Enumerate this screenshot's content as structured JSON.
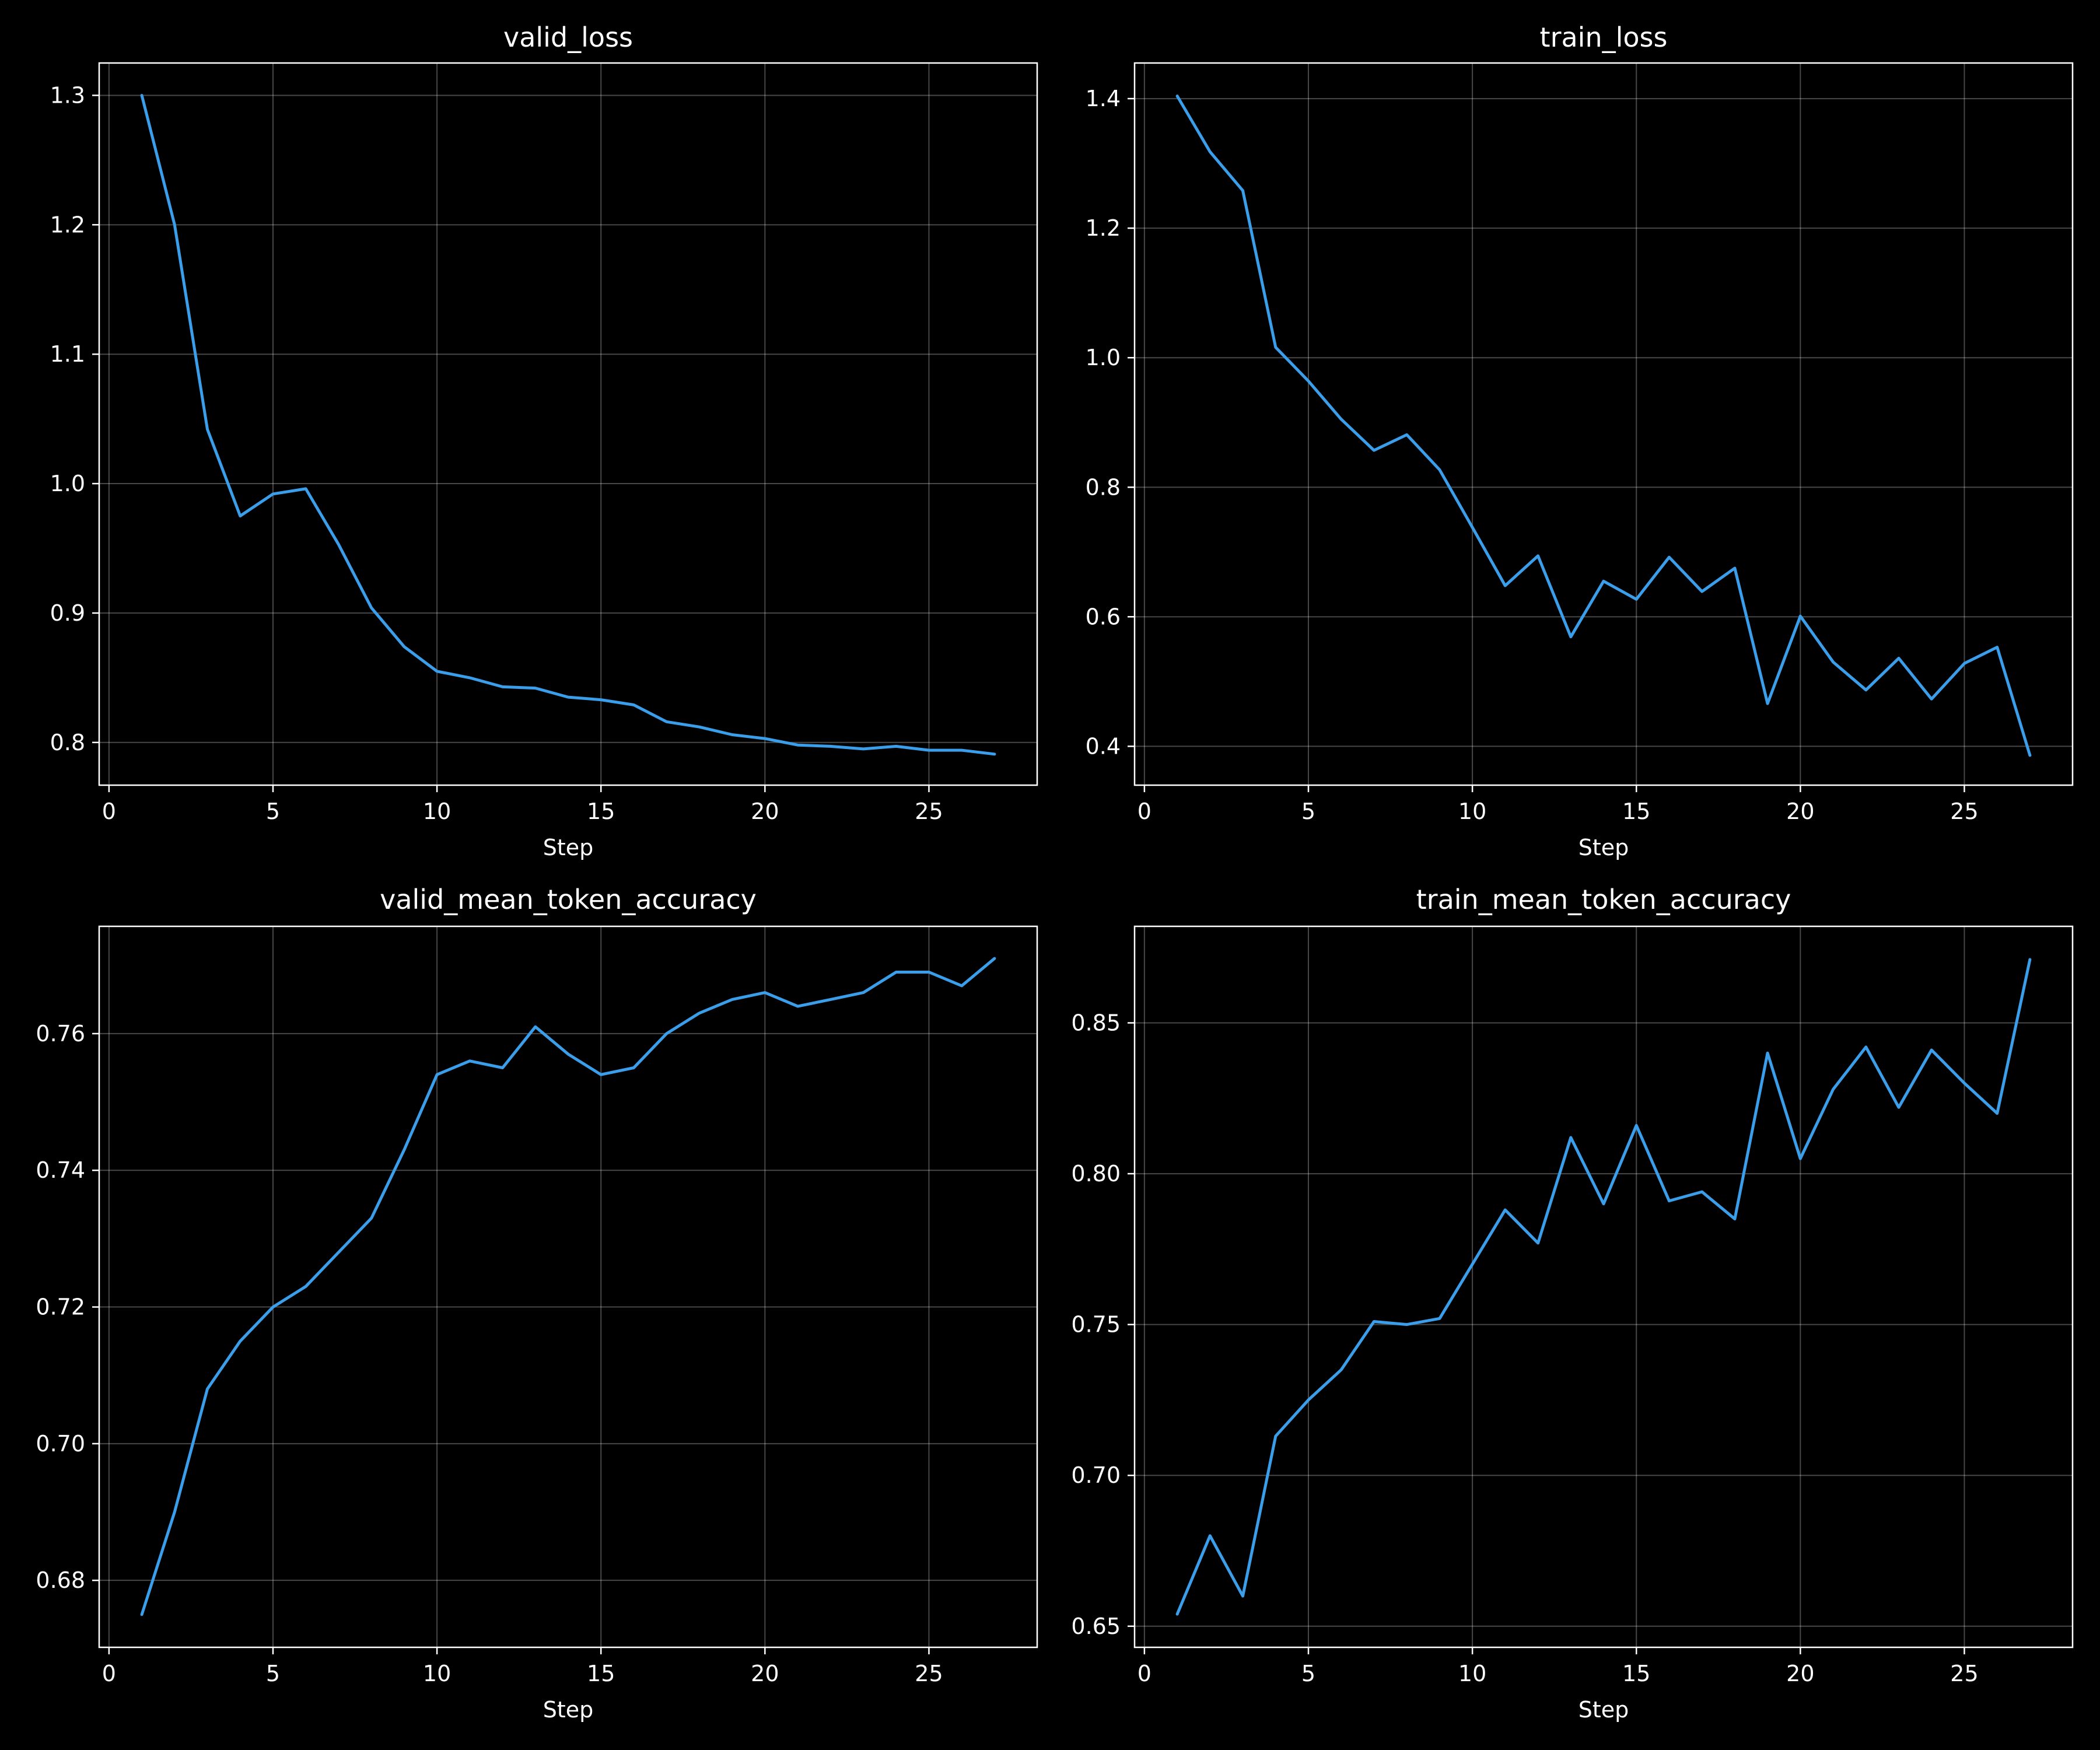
{
  "chart_data": [
    {
      "type": "line",
      "title": "valid_loss",
      "xlabel": "Step",
      "ylabel": "",
      "xlim": [
        -0.3,
        28.3
      ],
      "ylim": [
        0.767,
        1.325
      ],
      "xticks": [
        0,
        5,
        10,
        15,
        20,
        25
      ],
      "xtick_labels": [
        "0",
        "5",
        "10",
        "15",
        "20",
        "25"
      ],
      "yticks": [
        0.8,
        0.9,
        1.0,
        1.1,
        1.2,
        1.3
      ],
      "ytick_labels": [
        "0.8",
        "0.9",
        "1.0",
        "1.1",
        "1.2",
        "1.3"
      ],
      "grid": true,
      "series_color": "#3a9eea",
      "x": [
        1,
        2,
        3,
        4,
        5,
        6,
        7,
        8,
        9,
        10,
        11,
        12,
        13,
        14,
        15,
        16,
        17,
        18,
        19,
        20,
        21,
        22,
        23,
        24,
        25,
        26,
        27
      ],
      "y": [
        1.3,
        1.2,
        1.042,
        0.975,
        0.992,
        0.996,
        0.953,
        0.904,
        0.874,
        0.855,
        0.85,
        0.843,
        0.842,
        0.835,
        0.833,
        0.829,
        0.816,
        0.812,
        0.806,
        0.803,
        0.798,
        0.797,
        0.795,
        0.797,
        0.794,
        0.794,
        0.791
      ]
    },
    {
      "type": "line",
      "title": "train_loss",
      "xlabel": "Step",
      "ylabel": "",
      "xlim": [
        -0.3,
        28.3
      ],
      "ylim": [
        0.34,
        1.455
      ],
      "xticks": [
        0,
        5,
        10,
        15,
        20,
        25
      ],
      "xtick_labels": [
        "0",
        "5",
        "10",
        "15",
        "20",
        "25"
      ],
      "yticks": [
        0.4,
        0.6,
        0.8,
        1.0,
        1.2,
        1.4
      ],
      "ytick_labels": [
        "0.4",
        "0.6",
        "0.8",
        "1.0",
        "1.2",
        "1.4"
      ],
      "grid": true,
      "series_color": "#3a9eea",
      "x": [
        1,
        2,
        3,
        4,
        5,
        6,
        7,
        8,
        9,
        10,
        11,
        12,
        13,
        14,
        15,
        16,
        17,
        18,
        19,
        20,
        21,
        22,
        23,
        24,
        25,
        26,
        27
      ],
      "y": [
        1.404,
        1.318,
        1.258,
        1.016,
        0.964,
        0.905,
        0.857,
        0.881,
        0.827,
        0.738,
        0.648,
        0.694,
        0.569,
        0.655,
        0.627,
        0.692,
        0.639,
        0.675,
        0.466,
        0.601,
        0.53,
        0.487,
        0.536,
        0.473,
        0.528,
        0.553,
        0.386
      ]
    },
    {
      "type": "line",
      "title": "valid_mean_token_accuracy",
      "xlabel": "Step",
      "ylabel": "",
      "xlim": [
        -0.3,
        28.3
      ],
      "ylim": [
        0.6702,
        0.7757
      ],
      "xticks": [
        0,
        5,
        10,
        15,
        20,
        25
      ],
      "xtick_labels": [
        "0",
        "5",
        "10",
        "15",
        "20",
        "25"
      ],
      "yticks": [
        0.68,
        0.7,
        0.72,
        0.74,
        0.76
      ],
      "ytick_labels": [
        "0.68",
        "0.70",
        "0.72",
        "0.74",
        "0.76"
      ],
      "grid": true,
      "series_color": "#3a9eea",
      "x": [
        1,
        2,
        3,
        4,
        5,
        6,
        7,
        8,
        9,
        10,
        11,
        12,
        13,
        14,
        15,
        16,
        17,
        18,
        19,
        20,
        21,
        22,
        23,
        24,
        25,
        26,
        27
      ],
      "y": [
        0.675,
        0.69,
        0.708,
        0.715,
        0.72,
        0.723,
        0.728,
        0.733,
        0.743,
        0.754,
        0.756,
        0.755,
        0.761,
        0.757,
        0.754,
        0.755,
        0.76,
        0.763,
        0.765,
        0.766,
        0.764,
        0.765,
        0.766,
        0.769,
        0.769,
        0.767,
        0.771
      ]
    },
    {
      "type": "line",
      "title": "train_mean_token_accuracy",
      "xlabel": "Step",
      "ylabel": "",
      "xlim": [
        -0.3,
        28.3
      ],
      "ylim": [
        0.643,
        0.882
      ],
      "xticks": [
        0,
        5,
        10,
        15,
        20,
        25
      ],
      "xtick_labels": [
        "0",
        "5",
        "10",
        "15",
        "20",
        "25"
      ],
      "yticks": [
        0.65,
        0.7,
        0.75,
        0.8,
        0.85
      ],
      "ytick_labels": [
        "0.65",
        "0.70",
        "0.75",
        "0.80",
        "0.85"
      ],
      "grid": true,
      "series_color": "#3a9eea",
      "x": [
        1,
        2,
        3,
        4,
        5,
        6,
        7,
        8,
        9,
        10,
        11,
        12,
        13,
        14,
        15,
        16,
        17,
        18,
        19,
        20,
        21,
        22,
        23,
        24,
        25,
        26,
        27
      ],
      "y": [
        0.654,
        0.68,
        0.66,
        0.713,
        0.725,
        0.735,
        0.751,
        0.75,
        0.752,
        0.77,
        0.788,
        0.777,
        0.812,
        0.79,
        0.816,
        0.791,
        0.794,
        0.785,
        0.84,
        0.805,
        0.828,
        0.842,
        0.822,
        0.841,
        0.83,
        0.82,
        0.871
      ]
    }
  ]
}
